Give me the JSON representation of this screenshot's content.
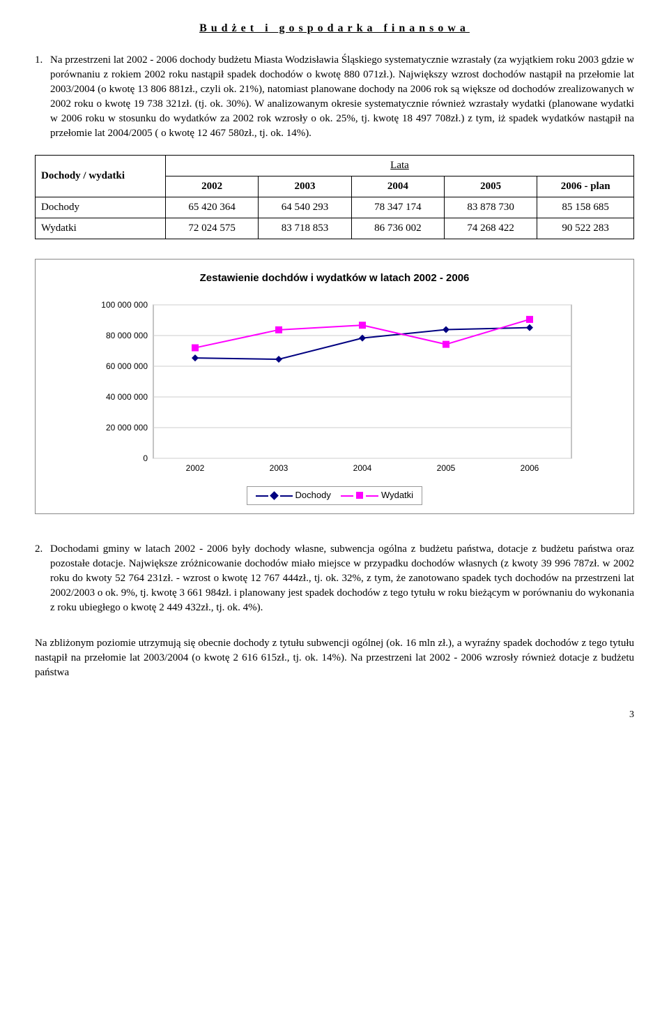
{
  "title": "Budżet i gospodarka finansowa",
  "para1_num": "1.",
  "para1": "Na przestrzeni lat 2002 - 2006 dochody budżetu Miasta Wodzisławia Śląskiego systematycznie wzrastały (za wyjątkiem roku 2003 gdzie w porównaniu z rokiem 2002 roku nastąpił spadek dochodów o kwotę 880 071zł.). Największy wzrost dochodów nastąpił na przełomie lat 2003/2004 (o kwotę 13 806 881zł., czyli ok. 21%), natomiast planowane dochody na 2006 rok są większe od dochodów zrealizowanych w 2002 roku o kwotę 19 738 321zł. (tj. ok. 30%). W analizowanym okresie systematycznie również wzrastały wydatki (planowane wydatki w 2006 roku w stosunku do wydatków za 2002 rok wzrosły o ok. 25%, tj. kwotę 18 497 708zł.) z tym, iż spadek wydatków nastąpił na przełomie lat 2004/2005 ( o kwotę 12 467 580zł., tj. ok. 14%).",
  "table": {
    "header_label": "Dochody / wydatki",
    "lata_label": "Lata",
    "years": [
      "2002",
      "2003",
      "2004",
      "2005",
      "2006 - plan"
    ],
    "rows": [
      {
        "label": "Dochody",
        "cells": [
          "65 420 364",
          "64 540 293",
          "78 347 174",
          "83 878 730",
          "85 158 685"
        ]
      },
      {
        "label": "Wydatki",
        "cells": [
          "72 024 575",
          "83 718 853",
          "86 736 002",
          "74 268 422",
          "90 522 283"
        ]
      }
    ]
  },
  "chart": {
    "title": "Zestawienie dochdów i wydatków w latach 2002 - 2006",
    "x_labels": [
      "2002",
      "2003",
      "2004",
      "2005",
      "2006"
    ],
    "y_ticks": [
      "0",
      "20 000 000",
      "40 000 000",
      "60 000 000",
      "80 000 000",
      "100 000 000"
    ],
    "ylim": [
      0,
      100000000
    ],
    "series": [
      {
        "name": "Dochody",
        "color": "#000080",
        "marker": "diamond",
        "values": [
          65420364,
          64540293,
          78347174,
          83878730,
          85158685
        ]
      },
      {
        "name": "Wydatki",
        "color": "#ff00ff",
        "marker": "square",
        "values": [
          72024575,
          83718853,
          86736002,
          74268422,
          90522283
        ]
      }
    ],
    "grid_color": "#cccccc",
    "plot_bg": "#ffffff",
    "font_family": "Arial",
    "font_size": 12
  },
  "para2_num": "2.",
  "para2": "Dochodami gminy w latach 2002 - 2006 były dochody własne, subwencja ogólna z budżetu państwa, dotacje z budżetu państwa oraz pozostałe dotacje. Największe zróżnicowanie dochodów miało miejsce w przypadku dochodów własnych (z kwoty 39 996 787zł. w 2002 roku do kwoty 52 764 231zł. - wzrost o kwotę 12 767 444zł., tj. ok. 32%, z tym, że zanotowano spadek tych dochodów na przestrzeni lat 2002/2003 o ok. 9%, tj. kwotę 3 661 984zł. i planowany jest spadek dochodów z tego tytułu w roku bieżącym w porównaniu do wykonania z roku ubiegłego o kwotę 2 449 432zł., tj. ok. 4%).",
  "para3": "Na zbliżonym poziomie utrzymują się obecnie dochody z tytułu subwencji ogólnej (ok. 16 mln zł.), a wyraźny spadek dochodów z tego tytułu nastąpił na przełomie lat 2003/2004 (o kwotę 2 616 615zł., tj. ok. 14%). Na przestrzeni lat 2002 - 2006 wzrosły również dotacje z budżetu państwa",
  "page_number": "3"
}
